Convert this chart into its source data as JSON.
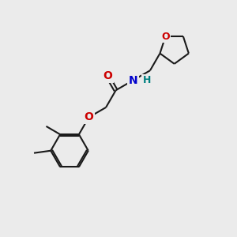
{
  "bg_color": "#ebebeb",
  "bond_color": "#1a1a1a",
  "O_color": "#cc0000",
  "N_color": "#0000cc",
  "H_color": "#008080",
  "line_width": 1.5,
  "font_size": 10,
  "fig_size": [
    3.0,
    3.0
  ],
  "dpi": 100,
  "xlim": [
    0,
    10
  ],
  "ylim": [
    0,
    10
  ]
}
